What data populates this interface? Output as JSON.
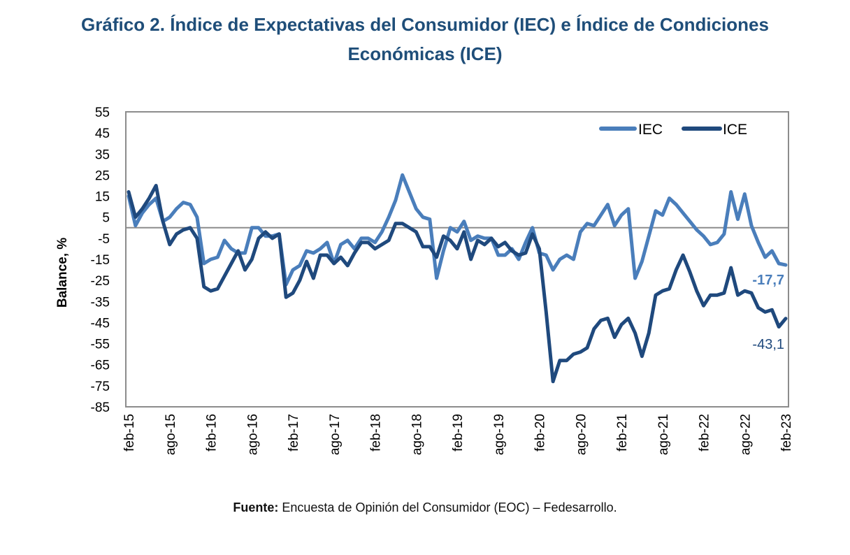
{
  "title_line1": "Gráfico 2. Índice de Expectativas del Consumidor (IEC) e Índice de Condiciones",
  "title_line2": "Económicas (ICE)",
  "footer": {
    "label": "Fuente:",
    "text": " Encuesta de Opinión del Consumidor (EOC) – Fedesarrollo."
  },
  "colors": {
    "IEC": "#4a7ebb",
    "ICE": "#1f497d",
    "title": "#1f4e79"
  },
  "chart_data": {
    "type": "line",
    "title": "",
    "xlabel": "",
    "ylabel": "Balance, %",
    "ylim": [
      -85,
      55
    ],
    "yticks": [
      55,
      45,
      35,
      25,
      15,
      5,
      -5,
      -15,
      -25,
      -35,
      -45,
      -55,
      -65,
      -75,
      -85
    ],
    "xticks": [
      "feb-15",
      "ago-15",
      "feb-16",
      "ago-16",
      "feb-17",
      "ago-17",
      "feb-18",
      "ago-18",
      "feb-19",
      "ago-19",
      "feb-20",
      "ago-20",
      "feb-21",
      "ago-21",
      "feb-22",
      "ago-22",
      "feb-23"
    ],
    "x_start": "feb-15",
    "x_end": "feb-23",
    "frequency": "monthly",
    "reference_line": 0,
    "grid": false,
    "legend_position": "top-right",
    "series": [
      {
        "name": "IEC",
        "values": [
          15,
          1,
          7,
          11,
          14,
          3,
          5,
          9,
          12,
          11,
          5,
          -17,
          -15,
          -14,
          -6,
          -10,
          -12,
          -12,
          0,
          0,
          -4,
          -4,
          -3,
          -27,
          -20,
          -18,
          -11,
          -12,
          -10,
          -7,
          -17,
          -8,
          -6,
          -10,
          -5,
          -5,
          -7,
          -2,
          5,
          13,
          25,
          17,
          9,
          5,
          4,
          -24,
          -11,
          0,
          -2,
          3,
          -6,
          -4,
          -5,
          -5,
          -13,
          -13,
          -10,
          -15,
          -7,
          0,
          -12,
          -13,
          -20,
          -15,
          -13,
          -15,
          -2,
          2,
          1,
          6,
          11,
          1,
          6,
          9,
          -24,
          -16,
          -4,
          8,
          6,
          14,
          11,
          7,
          3,
          -1,
          -4,
          -8,
          -7,
          -3,
          17,
          4,
          16,
          1,
          -7,
          -14,
          -11,
          -17,
          -17.7
        ],
        "end_label": "-17,7"
      },
      {
        "name": "ICE",
        "values": [
          17,
          5,
          9,
          14,
          20,
          3,
          -8,
          -3,
          -1,
          0,
          -5,
          -28,
          -30,
          -29,
          -23,
          -17,
          -11,
          -20,
          -15,
          -5,
          -2,
          -5,
          -3,
          -33,
          -31,
          -25,
          -16,
          -24,
          -13,
          -13,
          -17,
          -14,
          -18,
          -12,
          -7,
          -7,
          -10,
          -8,
          -6,
          2,
          2,
          0,
          -2,
          -9,
          -9,
          -14,
          -4,
          -6,
          -10,
          -2,
          -15,
          -6,
          -8,
          -5,
          -9,
          -7,
          -11,
          -13,
          -12,
          -3,
          -10,
          -40,
          -73,
          -63,
          -63,
          -60,
          -59,
          -57,
          -48,
          -44,
          -43,
          -52,
          -46,
          -43,
          -50,
          -61,
          -50,
          -32,
          -30,
          -29,
          -20,
          -13,
          -21,
          -30,
          -37,
          -32,
          -32,
          -31,
          -19,
          -32,
          -30,
          -31,
          -38,
          -40,
          -39,
          -47,
          -43.1
        ],
        "end_label": "-43,1"
      }
    ]
  }
}
